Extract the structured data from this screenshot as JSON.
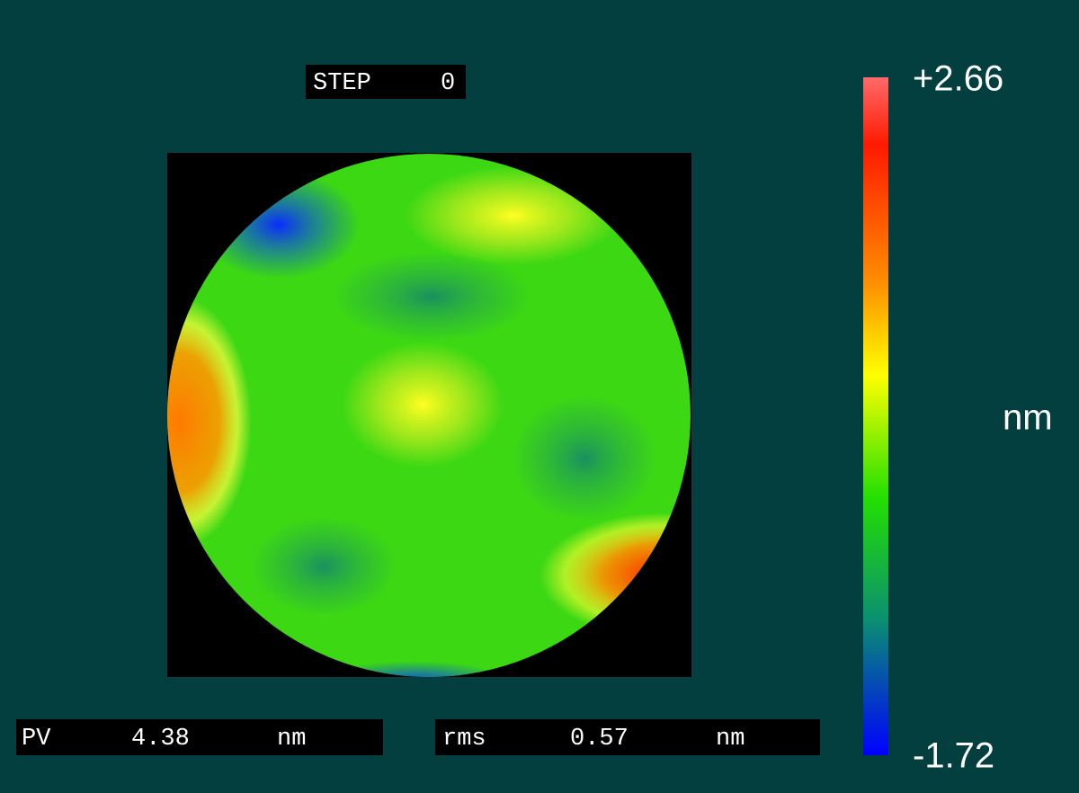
{
  "step": {
    "label": "STEP",
    "value": "0"
  },
  "colorbar": {
    "max": "+2.66",
    "min": "-1.72",
    "unit": "nm"
  },
  "pv": {
    "label": "PV",
    "value": "4.38",
    "unit": "nm"
  },
  "rms": {
    "label": "rms",
    "value": "0.57",
    "unit": "nm"
  }
}
